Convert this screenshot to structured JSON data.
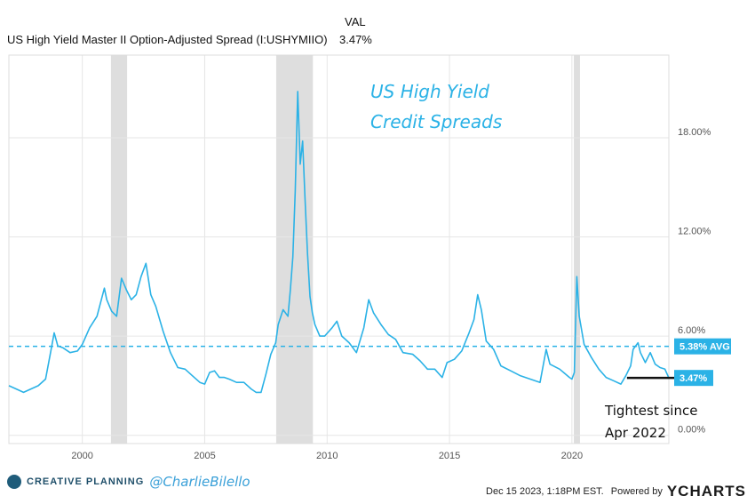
{
  "header": {
    "val_label": "VAL",
    "series_name": "US High Yield Master II Option-Adjusted Spread (I:USHYMIIO)",
    "series_value": "3.47%"
  },
  "chart_data": {
    "type": "line",
    "title": "US High Yield Credit Spreads",
    "title_lines": [
      "US High Yield",
      "Credit Spreads"
    ],
    "xlabel": "",
    "ylabel": "",
    "xlim": [
      1997.0,
      2023.96
    ],
    "ylim": [
      -0.5,
      23.0
    ],
    "x_ticks": [
      2000,
      2005,
      2010,
      2015,
      2020
    ],
    "x_tick_labels": [
      "2000",
      "2005",
      "2010",
      "2015",
      "2020"
    ],
    "y_ticks": [
      0,
      6,
      12,
      18
    ],
    "y_tick_labels": [
      "0.00%",
      "6.00%",
      "12.00%",
      "18.00%"
    ],
    "grid": true,
    "recessions": [
      [
        2001.17,
        2001.83
      ],
      [
        2007.92,
        2009.42
      ],
      [
        2020.08,
        2020.33
      ]
    ],
    "average": 5.38,
    "average_label": "5.38% AVG",
    "current_value": 3.47,
    "current_label": "3.47%",
    "annotation": [
      "Tightest since",
      "Apr 2022"
    ],
    "reference_line_start": 2022.25,
    "color": "#2bb2e6",
    "series": [
      {
        "name": "US High Yield Master II Option-Adjusted Spread",
        "x": [
          1997.0,
          1997.3,
          1997.6,
          1997.9,
          1998.2,
          1998.5,
          1998.7,
          1998.85,
          1999.0,
          1999.2,
          1999.5,
          1999.8,
          2000.0,
          2000.3,
          2000.6,
          2000.9,
          2001.0,
          2001.2,
          2001.4,
          2001.6,
          2001.8,
          2002.0,
          2002.2,
          2002.4,
          2002.6,
          2002.8,
          2003.0,
          2003.3,
          2003.6,
          2003.9,
          2004.2,
          2004.5,
          2004.8,
          2005.0,
          2005.2,
          2005.4,
          2005.6,
          2005.8,
          2006.0,
          2006.3,
          2006.6,
          2006.9,
          2007.1,
          2007.3,
          2007.5,
          2007.7,
          2007.9,
          2008.0,
          2008.2,
          2008.4,
          2008.5,
          2008.6,
          2008.7,
          2008.8,
          2008.9,
          2009.0,
          2009.1,
          2009.2,
          2009.3,
          2009.4,
          2009.5,
          2009.7,
          2009.9,
          2010.2,
          2010.4,
          2010.6,
          2010.9,
          2011.2,
          2011.5,
          2011.7,
          2011.9,
          2012.2,
          2012.5,
          2012.8,
          2013.1,
          2013.5,
          2013.8,
          2014.1,
          2014.4,
          2014.7,
          2014.9,
          2015.2,
          2015.5,
          2015.8,
          2016.0,
          2016.15,
          2016.3,
          2016.5,
          2016.8,
          2017.1,
          2017.5,
          2017.9,
          2018.3,
          2018.7,
          2018.95,
          2019.1,
          2019.5,
          2019.9,
          2020.0,
          2020.1,
          2020.2,
          2020.3,
          2020.5,
          2020.8,
          2021.1,
          2021.4,
          2021.7,
          2022.0,
          2022.2,
          2022.4,
          2022.5,
          2022.7,
          2022.8,
          2023.0,
          2023.2,
          2023.4,
          2023.6,
          2023.8,
          2023.96
        ],
        "values": [
          3.0,
          2.8,
          2.6,
          2.8,
          3.0,
          3.4,
          5.0,
          6.2,
          5.4,
          5.3,
          5.0,
          5.1,
          5.5,
          6.5,
          7.2,
          8.9,
          8.2,
          7.5,
          7.2,
          9.5,
          8.8,
          8.2,
          8.5,
          9.6,
          10.4,
          8.5,
          7.8,
          6.3,
          5.0,
          4.1,
          4.0,
          3.6,
          3.2,
          3.1,
          3.8,
          3.9,
          3.5,
          3.5,
          3.4,
          3.2,
          3.2,
          2.8,
          2.6,
          2.6,
          3.7,
          4.9,
          5.6,
          6.7,
          7.6,
          7.2,
          8.8,
          10.8,
          14.8,
          20.8,
          16.4,
          17.8,
          14.2,
          11.0,
          8.4,
          7.4,
          6.7,
          6.0,
          6.0,
          6.5,
          6.9,
          6.0,
          5.6,
          5.0,
          6.5,
          8.2,
          7.4,
          6.7,
          6.1,
          5.8,
          5.0,
          4.9,
          4.5,
          4.0,
          4.0,
          3.5,
          4.4,
          4.6,
          5.1,
          6.2,
          7.0,
          8.5,
          7.6,
          5.7,
          5.2,
          4.2,
          3.9,
          3.6,
          3.4,
          3.2,
          5.2,
          4.3,
          4.0,
          3.5,
          3.4,
          3.8,
          9.6,
          7.2,
          5.5,
          4.7,
          4.0,
          3.5,
          3.3,
          3.1,
          3.6,
          4.2,
          5.2,
          5.6,
          5.0,
          4.4,
          5.0,
          4.3,
          4.1,
          4.0,
          3.47
        ]
      }
    ]
  },
  "footer": {
    "brand": "CREATIVE PLANNING",
    "handle": "@CharlieBilello",
    "timestamp": "Dec 15 2023, 1:18PM EST.",
    "powered": "Powered by",
    "provider": "YCHARTS"
  }
}
